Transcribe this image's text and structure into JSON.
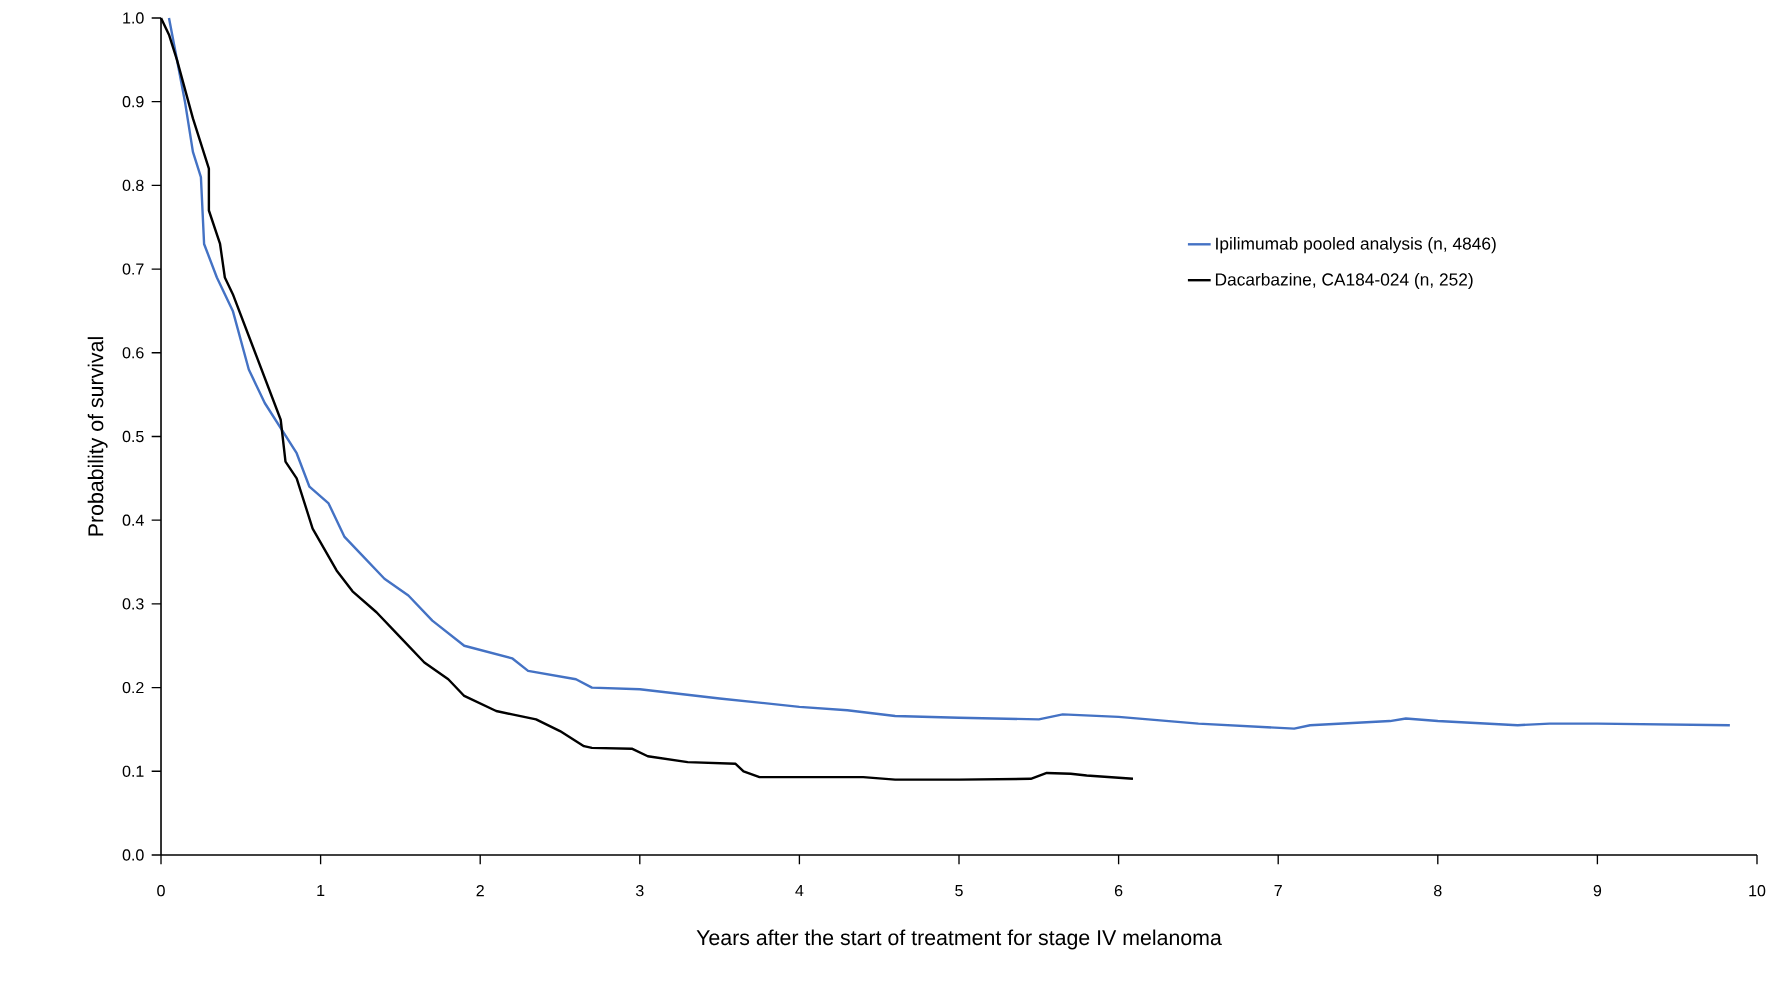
{
  "chart_data": {
    "type": "line",
    "xlabel": "Years after the start of treatment for stage IV melanoma",
    "ylabel": "Probability of survival",
    "xlim": [
      0,
      10
    ],
    "xticks": [
      0,
      1,
      2,
      3,
      4,
      5,
      6,
      7,
      8,
      9,
      10
    ],
    "ylim": [
      0,
      1
    ],
    "yticks": [
      {
        "value": 0,
        "label": "0.0"
      },
      {
        "value": 0.1,
        "label": "0.1"
      },
      {
        "value": 0.2,
        "label": "0.2"
      },
      {
        "value": 0.3,
        "label": "0.3"
      },
      {
        "value": 0.4,
        "label": "0.4"
      },
      {
        "value": 0.5,
        "label": "0.5"
      },
      {
        "value": 0.6,
        "label": "0.6"
      },
      {
        "value": 0.7,
        "label": "0.7"
      },
      {
        "value": 0.8,
        "label": "0.8"
      },
      {
        "value": 0.9,
        "label": "0.9"
      },
      {
        "value": 1,
        "label": "1.0"
      }
    ],
    "grid": false,
    "legend": "top right",
    "marker": "none",
    "line_style": "solid",
    "series": [
      {
        "name": "Ipilimumab pooled analysis (n, 4846)",
        "color": "#4472c4",
        "x": [
          0.05,
          0.1,
          0.15,
          0.2,
          0.25,
          0.27,
          0.35,
          0.45,
          0.55,
          0.65,
          0.75,
          0.85,
          0.93,
          1.05,
          1.15,
          1.25,
          1.4,
          1.55,
          1.7,
          1.9,
          2.2,
          2.3,
          2.6,
          2.7,
          3.0,
          3.5,
          4.0,
          4.3,
          4.6,
          5.0,
          5.5,
          5.65,
          6.0,
          6.5,
          7.0,
          7.1,
          7.2,
          7.7,
          7.8,
          8.0,
          8.5,
          8.7,
          9.0,
          9.83
        ],
        "values": [
          1.0,
          0.95,
          0.9,
          0.84,
          0.81,
          0.73,
          0.69,
          0.65,
          0.58,
          0.54,
          0.51,
          0.48,
          0.44,
          0.42,
          0.38,
          0.36,
          0.33,
          0.31,
          0.28,
          0.25,
          0.235,
          0.22,
          0.21,
          0.2,
          0.198,
          0.187,
          0.177,
          0.173,
          0.166,
          0.164,
          0.162,
          0.168,
          0.165,
          0.157,
          0.152,
          0.151,
          0.155,
          0.16,
          0.163,
          0.16,
          0.155,
          0.157,
          0.157,
          0.155
        ]
      },
      {
        "name": "Dacarbazine, CA184-024 (n, 252)",
        "color": "#000000",
        "x": [
          0,
          0.05,
          0.1,
          0.2,
          0.3,
          0.3,
          0.37,
          0.4,
          0.45,
          0.55,
          0.65,
          0.75,
          0.78,
          0.85,
          0.95,
          1.1,
          1.2,
          1.35,
          1.5,
          1.65,
          1.8,
          1.9,
          2.1,
          2.2,
          2.35,
          2.5,
          2.65,
          2.7,
          2.95,
          3.05,
          3.3,
          3.6,
          3.65,
          3.75,
          4.4,
          4.6,
          5.0,
          5.45,
          5.55,
          5.7,
          5.8,
          6.09
        ],
        "values": [
          1.0,
          0.98,
          0.95,
          0.88,
          0.82,
          0.77,
          0.73,
          0.69,
          0.67,
          0.62,
          0.57,
          0.52,
          0.47,
          0.45,
          0.39,
          0.34,
          0.315,
          0.29,
          0.26,
          0.23,
          0.21,
          0.19,
          0.172,
          0.168,
          0.162,
          0.148,
          0.13,
          0.128,
          0.127,
          0.118,
          0.111,
          0.109,
          0.1,
          0.093,
          0.093,
          0.09,
          0.09,
          0.091,
          0.098,
          0.097,
          0.095,
          0.091
        ]
      }
    ]
  }
}
